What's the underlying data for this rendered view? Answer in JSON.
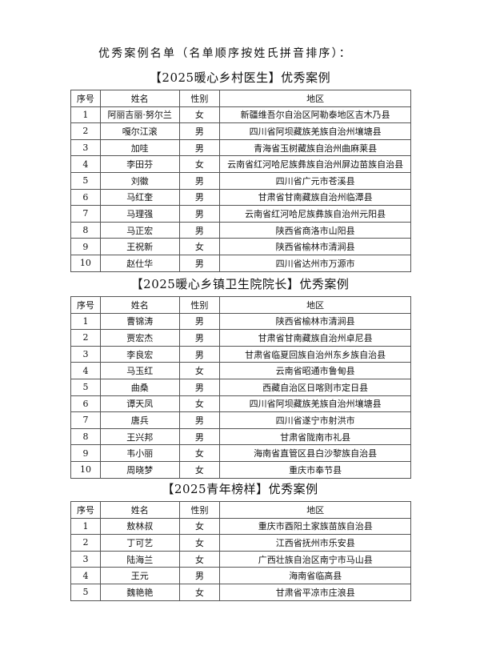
{
  "title": "优秀案例名单（名单顺序按姓氏拼音排序）：",
  "columns": [
    "序号",
    "姓名",
    "性别",
    "地区"
  ],
  "sections": [
    {
      "heading": "【2025暖心乡村医生】优秀案例",
      "rows": [
        [
          "1",
          "阿丽吉丽·努尔兰",
          "女",
          "新疆维吾尔自治区阿勒泰地区吉木乃县"
        ],
        [
          "2",
          "嘎尔江滚",
          "男",
          "四川省阿坝藏族羌族自治州壤塘县"
        ],
        [
          "3",
          "加哇",
          "男",
          "青海省玉树藏族自治州曲麻莱县"
        ],
        [
          "4",
          "李田芬",
          "女",
          "云南省红河哈尼族彝族自治州屏边苗族自治县"
        ],
        [
          "5",
          "刘徽",
          "男",
          "四川省广元市苍溪县"
        ],
        [
          "6",
          "马红奎",
          "男",
          "甘肃省甘南藏族自治州临潭县"
        ],
        [
          "7",
          "马理强",
          "男",
          "云南省红河哈尼族彝族自治州元阳县"
        ],
        [
          "8",
          "马正宏",
          "男",
          "陕西省商洛市山阳县"
        ],
        [
          "9",
          "王祝新",
          "女",
          "陕西省榆林市清涧县"
        ],
        [
          "10",
          "赵仕华",
          "男",
          "四川省达州市万源市"
        ]
      ]
    },
    {
      "heading": "【2025暖心乡镇卫生院院长】优秀案例",
      "rows": [
        [
          "1",
          "曹锦涛",
          "男",
          "陕西省榆林市清涧县"
        ],
        [
          "2",
          "贾宏杰",
          "男",
          "甘肃省甘南藏族自治州卓尼县"
        ],
        [
          "3",
          "李良宏",
          "男",
          "甘肃省临夏回族自治州东乡族自治县"
        ],
        [
          "4",
          "马玉红",
          "女",
          "云南省昭通市鲁甸县"
        ],
        [
          "5",
          "曲桑",
          "男",
          "西藏自治区日喀则市定日县"
        ],
        [
          "6",
          "谭天凤",
          "女",
          "四川省阿坝藏族羌族自治州壤塘县"
        ],
        [
          "7",
          "唐兵",
          "男",
          "四川省遂宁市射洪市"
        ],
        [
          "8",
          "王兴邦",
          "男",
          "甘肃省陇南市礼县"
        ],
        [
          "9",
          "韦小丽",
          "女",
          "海南省直管区县白沙黎族自治县"
        ],
        [
          "10",
          "周晓梦",
          "女",
          "重庆市奉节县"
        ]
      ]
    },
    {
      "heading": "【2025青年榜样】优秀案例",
      "rows": [
        [
          "1",
          "敖林叔",
          "女",
          "重庆市酉阳土家族苗族自治县"
        ],
        [
          "2",
          "丁可艺",
          "女",
          "江西省抚州市乐安县"
        ],
        [
          "3",
          "陆海兰",
          "女",
          "广西壮族自治区南宁市马山县"
        ],
        [
          "4",
          "王元",
          "男",
          "海南省临高县"
        ],
        [
          "5",
          "魏艳艳",
          "女",
          "甘肃省平凉市庄浪县"
        ]
      ]
    }
  ]
}
